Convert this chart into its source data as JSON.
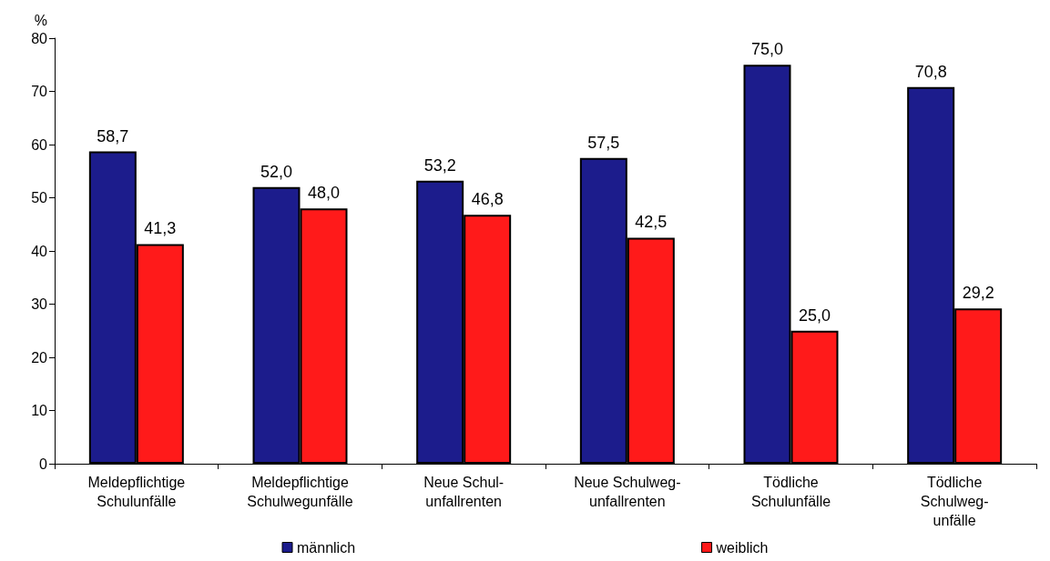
{
  "chart_data": {
    "type": "bar",
    "ylabel": "%",
    "categories": [
      "Meldepflichtige\nSchulunfälle",
      "Meldepflichtige\nSchulwegunfälle",
      "Neue Schul-\nunfallrenten",
      "Neue Schulweg-\nunfallrenten",
      "Tödliche\nSchulunfälle",
      "Tödliche\nSchulweg-\nunfälle"
    ],
    "series": [
      {
        "name": "männlich",
        "color": "#1c1c8c",
        "values": [
          58.7,
          52.0,
          53.2,
          57.5,
          75.0,
          70.8
        ],
        "value_labels": [
          "58,7",
          "52,0",
          "53,2",
          "57,5",
          "75,0",
          "70,8"
        ]
      },
      {
        "name": "weiblich",
        "color": "#ff1a1a",
        "values": [
          41.3,
          48.0,
          46.8,
          42.5,
          25.0,
          29.2
        ],
        "value_labels": [
          "41,3",
          "48,0",
          "46,8",
          "42,5",
          "25,0",
          "29,2"
        ]
      }
    ],
    "ylim": [
      0,
      80
    ],
    "yticks": [
      0,
      10,
      20,
      30,
      40,
      50,
      60,
      70,
      80
    ],
    "grid": false,
    "legend": "bottom"
  }
}
